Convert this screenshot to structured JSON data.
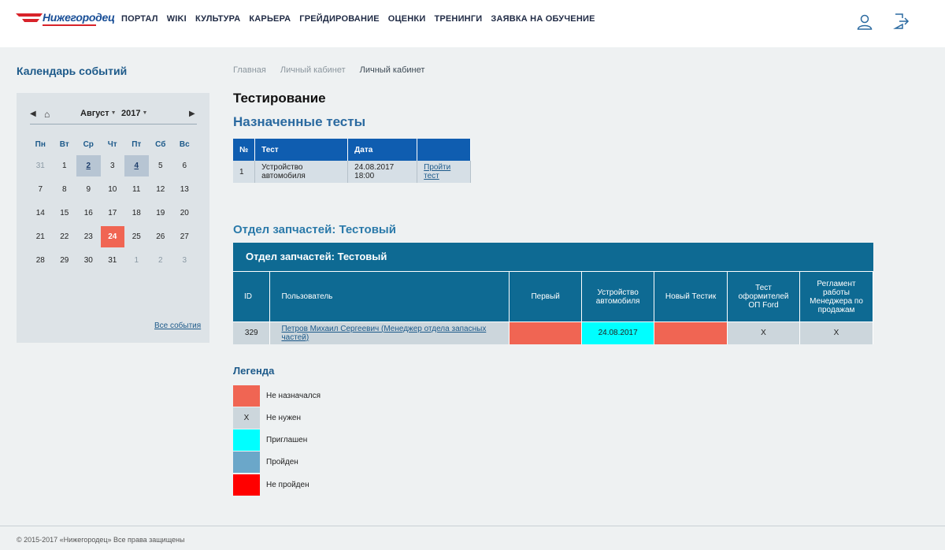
{
  "header": {
    "logo_text": "Нижегородец",
    "nav": [
      "ПОРТАЛ",
      "WIKI",
      "КУЛЬТУРА",
      "КАРЬЕРА",
      "ГРЕЙДИРОВАНИЕ",
      "ОЦЕНКИ",
      "ТРЕНИНГИ",
      "ЗАЯВКА НА ОБУЧЕНИЕ"
    ],
    "icons": [
      "user-icon",
      "logout-icon"
    ]
  },
  "sidebar": {
    "title": "Календарь событий",
    "calendar": {
      "month": "Август",
      "year": "2017",
      "weekdays": [
        "Пн",
        "Вт",
        "Ср",
        "Чт",
        "Пт",
        "Сб",
        "Вс"
      ],
      "weeks": [
        [
          {
            "d": "31",
            "t": "muted"
          },
          {
            "d": "1"
          },
          {
            "d": "2",
            "t": "event"
          },
          {
            "d": "3"
          },
          {
            "d": "4",
            "t": "event"
          },
          {
            "d": "5"
          },
          {
            "d": "6"
          }
        ],
        [
          {
            "d": "7"
          },
          {
            "d": "8"
          },
          {
            "d": "9"
          },
          {
            "d": "10"
          },
          {
            "d": "11"
          },
          {
            "d": "12"
          },
          {
            "d": "13"
          }
        ],
        [
          {
            "d": "14"
          },
          {
            "d": "15"
          },
          {
            "d": "16"
          },
          {
            "d": "17"
          },
          {
            "d": "18"
          },
          {
            "d": "19"
          },
          {
            "d": "20"
          }
        ],
        [
          {
            "d": "21"
          },
          {
            "d": "22"
          },
          {
            "d": "23"
          },
          {
            "d": "24",
            "t": "today"
          },
          {
            "d": "25"
          },
          {
            "d": "26"
          },
          {
            "d": "27"
          }
        ],
        [
          {
            "d": "28"
          },
          {
            "d": "29"
          },
          {
            "d": "30"
          },
          {
            "d": "31"
          },
          {
            "d": "1",
            "t": "muted"
          },
          {
            "d": "2",
            "t": "muted"
          },
          {
            "d": "3",
            "t": "muted"
          }
        ]
      ],
      "all_events": "Все события"
    }
  },
  "breadcrumbs": [
    "Главная",
    "Личный кабинет",
    "Личный кабинет"
  ],
  "page_title": "Тестирование",
  "assigned": {
    "title": "Назначенные тесты",
    "headers": [
      "№",
      "Тест",
      "Дата",
      ""
    ],
    "rows": [
      {
        "num": "1",
        "test": "Устройство автомобиля",
        "date": "24.08.2017 18:00",
        "action": "Пройти тест"
      }
    ]
  },
  "department": {
    "title": "Отдел запчастей: Тестовый",
    "caption": "Отдел запчастей: Тестовый",
    "headers": [
      "ID",
      "Пользователь",
      "Первый",
      "Устройство автомобиля",
      "Новый Тестик",
      "Тест оформителей ОП Ford",
      "Регламент работы Менеджера по продажам"
    ],
    "rows": [
      {
        "id": "329",
        "user": "Петров Михаил Сергеевич (Менеджер отдела запасных частей)",
        "cells": [
          {
            "v": "",
            "c": "red"
          },
          {
            "v": "24.08.2017",
            "c": "cyan"
          },
          {
            "v": "",
            "c": "red"
          },
          {
            "v": "X",
            "c": "gray"
          },
          {
            "v": "X",
            "c": "gray"
          }
        ]
      }
    ]
  },
  "legend": {
    "title": "Легенда",
    "items": [
      {
        "label": "Не назначался",
        "color": "#f06553",
        "mark": ""
      },
      {
        "label": "Не нужен",
        "color": "#ccd6dc",
        "mark": "X"
      },
      {
        "label": "Приглашен",
        "color": "#00ffff",
        "mark": ""
      },
      {
        "label": "Пройден",
        "color": "#6ba7c9",
        "mark": ""
      },
      {
        "label": "Не пройден",
        "color": "#ff0000",
        "mark": ""
      }
    ]
  },
  "footer": "© 2015-2017 «Нижегородец» Все права защищены"
}
